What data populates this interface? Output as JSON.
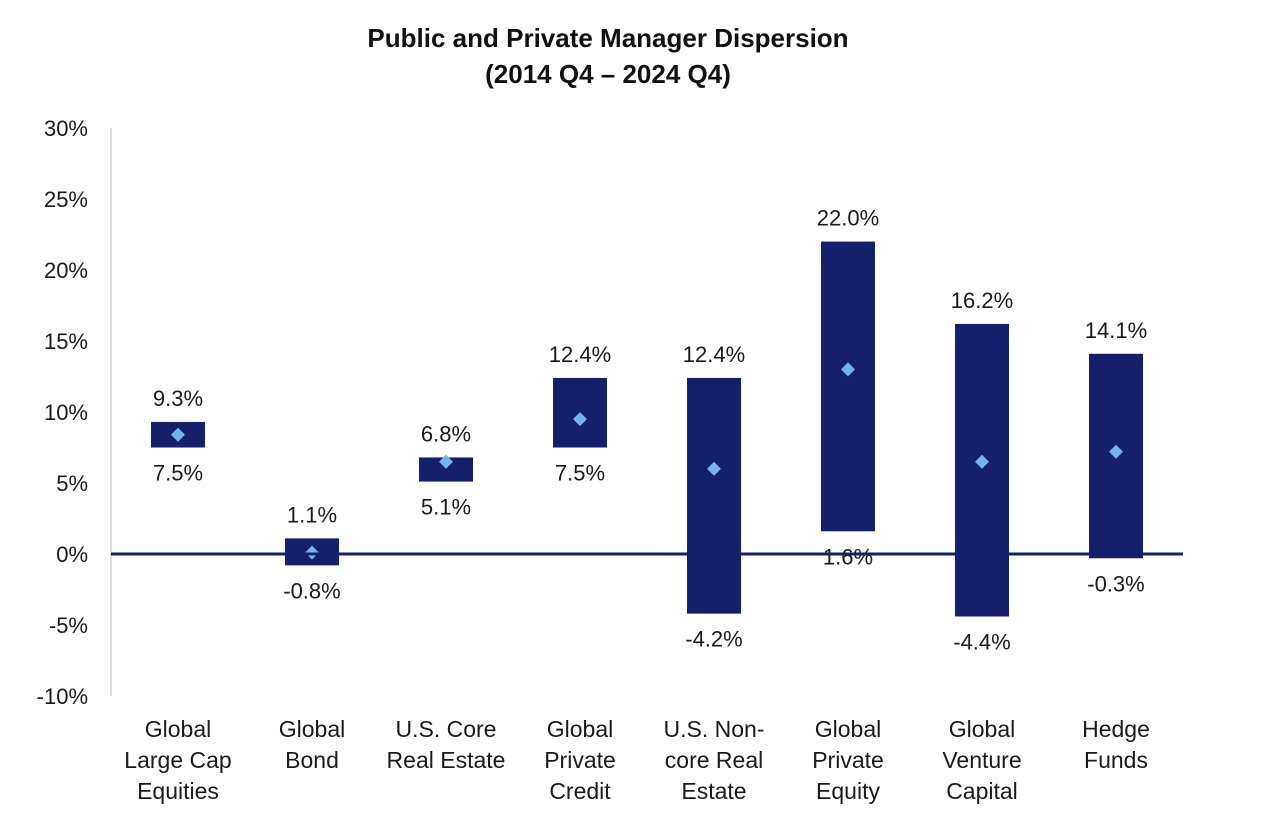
{
  "title_line1": "Public and Private Manager Dispersion",
  "title_line2": "(2014 Q4 – 2024 Q4)",
  "colors": {
    "bar": "#14206b",
    "marker": "#74b4ea",
    "axis": "#14206b",
    "y_axis_line": "#bdbdbd",
    "text": "#1a1a1a"
  },
  "chart_data": {
    "type": "range-bar",
    "y_ticks": [
      "30%",
      "25%",
      "20%",
      "15%",
      "10%",
      "5%",
      "0%",
      "-5%",
      "-10%"
    ],
    "ylim": [
      -10,
      30
    ],
    "grid": false,
    "categories": [
      {
        "label_lines": [
          "Global",
          "Large Cap",
          "Equities"
        ],
        "top": 9.3,
        "bottom": 7.5,
        "top_label": "9.3%",
        "bottom_label": "7.5%",
        "median": 8.4
      },
      {
        "label_lines": [
          "Global",
          "Bond"
        ],
        "top": 1.1,
        "bottom": -0.8,
        "top_label": "1.1%",
        "bottom_label": "-0.8%",
        "median": 0.1
      },
      {
        "label_lines": [
          "U.S. Core",
          "Real Estate"
        ],
        "top": 6.8,
        "bottom": 5.1,
        "top_label": "6.8%",
        "bottom_label": "5.1%",
        "median": 6.5
      },
      {
        "label_lines": [
          "Global",
          "Private",
          "Credit"
        ],
        "top": 12.4,
        "bottom": 7.5,
        "top_label": "12.4%",
        "bottom_label": "7.5%",
        "median": 9.5
      },
      {
        "label_lines": [
          "U.S. Non-",
          "core Real",
          "Estate"
        ],
        "top": 12.4,
        "bottom": -4.2,
        "top_label": "12.4%",
        "bottom_label": "-4.2%",
        "median": 6.0
      },
      {
        "label_lines": [
          "Global",
          "Private",
          "Equity"
        ],
        "top": 22.0,
        "bottom": 1.6,
        "top_label": "22.0%",
        "bottom_label": "1.6%",
        "median": 13.0
      },
      {
        "label_lines": [
          "Global",
          "Venture",
          "Capital"
        ],
        "top": 16.2,
        "bottom": -4.4,
        "top_label": "16.2%",
        "bottom_label": "-4.4%",
        "median": 6.5
      },
      {
        "label_lines": [
          "Hedge",
          "Funds"
        ],
        "top": 14.1,
        "bottom": -0.3,
        "top_label": "14.1%",
        "bottom_label": "-0.3%",
        "median": 7.2
      }
    ]
  }
}
